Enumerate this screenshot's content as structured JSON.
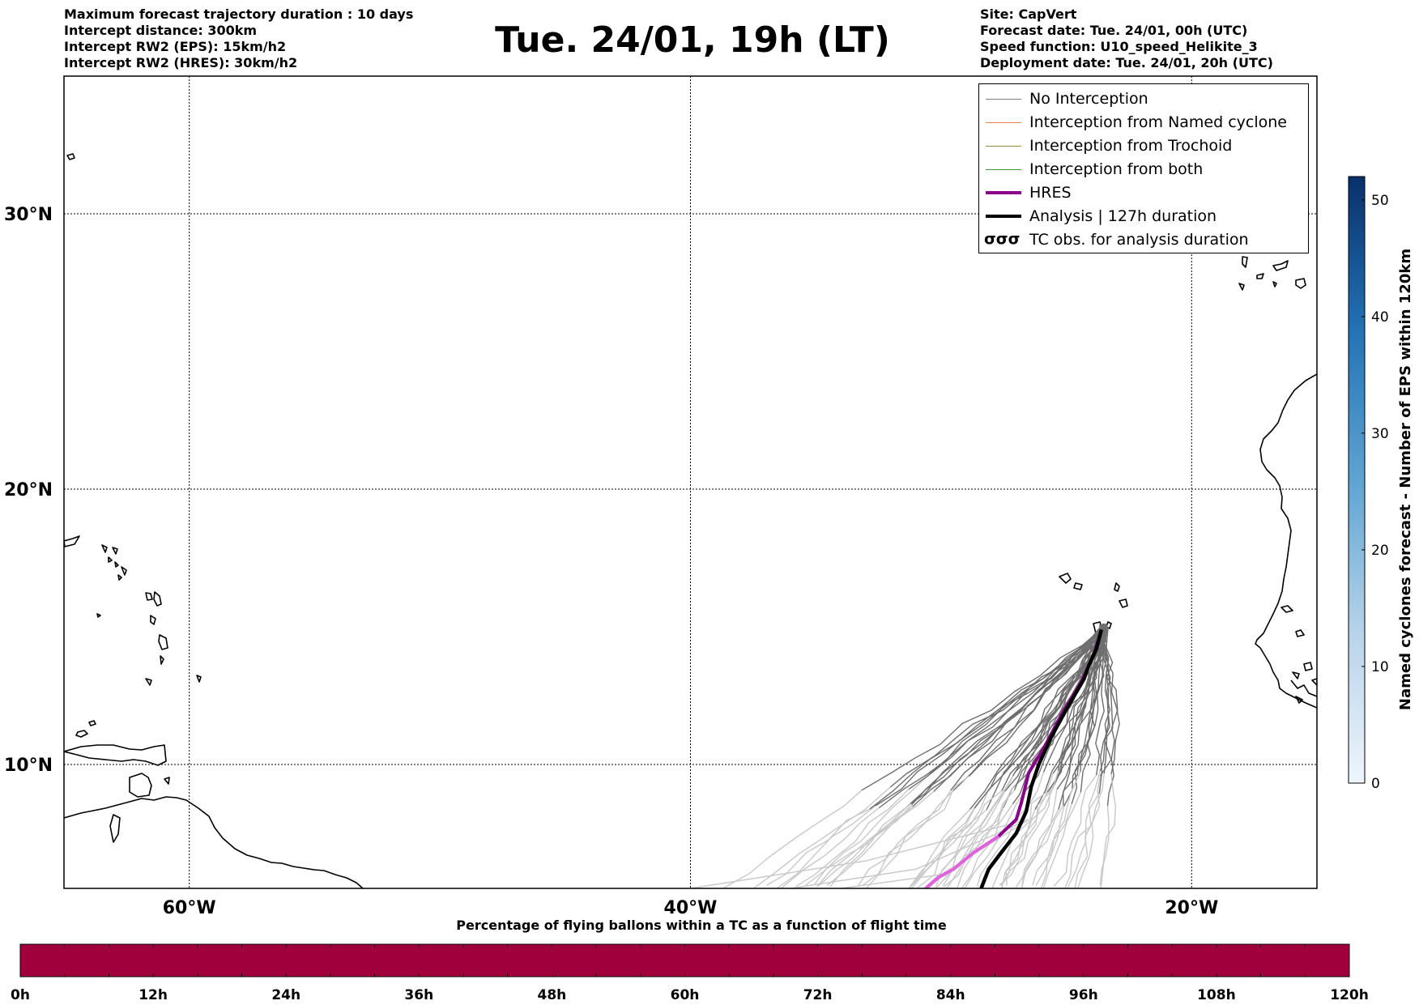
{
  "title": "Tue. 24/01, 19h (LT)",
  "info_left": [
    "Maximum forecast trajectory duration : 10 days",
    "Intercept distance: 300km",
    "Intercept RW2 (EPS):  15km/h2",
    "Intercept RW2 (HRES): 30km/h2"
  ],
  "info_right": [
    "Site: CapVert",
    "Forecast date: Tue. 24/01, 00h (UTC)",
    "Speed function: U10_speed_Helikite_3",
    "Deployment date: Tue. 24/01, 20h (UTC)"
  ],
  "map": {
    "lon_range": [
      -65,
      -15
    ],
    "lat_range": [
      5.5,
      35
    ],
    "lon_ticks": [
      {
        "value": -60,
        "label": "60°W"
      },
      {
        "value": -40,
        "label": "40°W"
      },
      {
        "value": -20,
        "label": "20°W"
      }
    ],
    "lat_ticks": [
      {
        "value": 30,
        "label": "30°N"
      },
      {
        "value": 20,
        "label": "20°N"
      },
      {
        "value": 10,
        "label": "10°N"
      }
    ],
    "gridlines": true,
    "deployment_site": {
      "lon": -23.5,
      "lat": 15.0
    }
  },
  "legend": {
    "placement": "top-right",
    "items": [
      {
        "label": "No Interception",
        "color": "#808080",
        "style": "thin"
      },
      {
        "label": "Interception from Named cyclone",
        "color": "#f07a4a",
        "style": "thin"
      },
      {
        "label": "Interception from Trochoid",
        "color": "#9a8b3a",
        "style": "thin"
      },
      {
        "label": "Interception from both",
        "color": "#3a9a3a",
        "style": "thin"
      },
      {
        "label": "HRES",
        "color": "#8b008b",
        "style": "thick"
      },
      {
        "label": "Analysis | 127h duration",
        "color": "#000000",
        "style": "thick"
      },
      {
        "label": "TC obs. for analysis duration",
        "glyph": "σσσ",
        "style": "glyph"
      }
    ]
  },
  "trajectories": {
    "analysis_color": "#000000",
    "hres_color": "#8b008b",
    "hres_fade_color": "#e060e0",
    "eps_color": "#6e6e6e",
    "eps_faded_color": "#c8c8c8",
    "analysis": [
      [
        -23.6,
        14.9
      ],
      [
        -23.8,
        14.2
      ],
      [
        -24.1,
        13.6
      ],
      [
        -24.3,
        13.1
      ],
      [
        -25.0,
        12.0
      ],
      [
        -25.6,
        11.0
      ],
      [
        -26.1,
        10.0
      ],
      [
        -26.4,
        9.2
      ],
      [
        -26.6,
        8.3
      ],
      [
        -27.0,
        7.5
      ],
      [
        -27.6,
        6.8
      ],
      [
        -28.1,
        6.2
      ],
      [
        -28.4,
        5.5
      ]
    ],
    "hres": [
      [
        -23.6,
        14.9
      ],
      [
        -23.9,
        14.0
      ],
      [
        -24.4,
        13.0
      ],
      [
        -25.2,
        11.8
      ],
      [
        -25.9,
        10.6
      ],
      [
        -26.5,
        9.7
      ],
      [
        -26.8,
        8.6
      ],
      [
        -27.0,
        8.0
      ],
      [
        -27.7,
        7.4
      ],
      [
        -28.7,
        6.8
      ],
      [
        -29.5,
        6.2
      ],
      [
        -30.1,
        5.9
      ],
      [
        -30.6,
        5.5
      ]
    ]
  },
  "colorbar_right": {
    "label": "Named cyclones forecast - Number of EPS within 120km",
    "range": [
      0,
      52
    ],
    "ticks": [
      0,
      10,
      20,
      30,
      40,
      50
    ]
  },
  "colorbar_bottom": {
    "title": "Percentage of flying ballons within a TC as a function of flight time",
    "color": "#a0003c",
    "ticks": [
      "0h",
      "12h",
      "24h",
      "36h",
      "48h",
      "60h",
      "72h",
      "84h",
      "96h",
      "108h",
      "120h"
    ]
  }
}
